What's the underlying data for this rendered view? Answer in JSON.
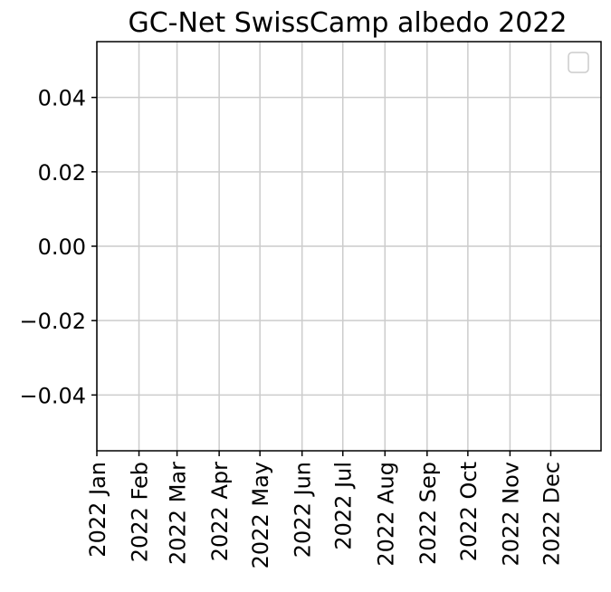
{
  "chart_data": {
    "type": "line",
    "title": "GC-Net SwissCamp albedo 2022",
    "xlabel": "",
    "ylabel": "",
    "x_axis": {
      "kind": "date",
      "range": [
        "2022-01-01",
        "2022-12-31"
      ],
      "ticks": [
        {
          "value": "2022-01-01",
          "label": "2022 Jan"
        },
        {
          "value": "2022-02-01",
          "label": "2022 Feb"
        },
        {
          "value": "2022-03-01",
          "label": "2022 Mar"
        },
        {
          "value": "2022-04-01",
          "label": "2022 Apr"
        },
        {
          "value": "2022-05-01",
          "label": "2022 May"
        },
        {
          "value": "2022-06-01",
          "label": "2022 Jun"
        },
        {
          "value": "2022-07-01",
          "label": "2022 Jul"
        },
        {
          "value": "2022-08-01",
          "label": "2022 Aug"
        },
        {
          "value": "2022-09-01",
          "label": "2022 Sep"
        },
        {
          "value": "2022-10-01",
          "label": "2022 Oct"
        },
        {
          "value": "2022-11-01",
          "label": "2022 Nov"
        },
        {
          "value": "2022-12-01",
          "label": "2022 Dec"
        }
      ]
    },
    "y_axis": {
      "range": [
        -0.055,
        0.055
      ],
      "ticks": [
        {
          "value": 0.04,
          "label": "0.04"
        },
        {
          "value": 0.02,
          "label": "0.02"
        },
        {
          "value": 0.0,
          "label": "0.00"
        },
        {
          "value": -0.02,
          "label": "−0.02"
        },
        {
          "value": -0.04,
          "label": "−0.04"
        }
      ]
    },
    "grid": true,
    "legend": {
      "placement": "top-right",
      "entries": []
    },
    "series": []
  },
  "colors": {
    "grid": "#cccccc",
    "axis": "#000000",
    "legend_border": "#cccccc"
  }
}
